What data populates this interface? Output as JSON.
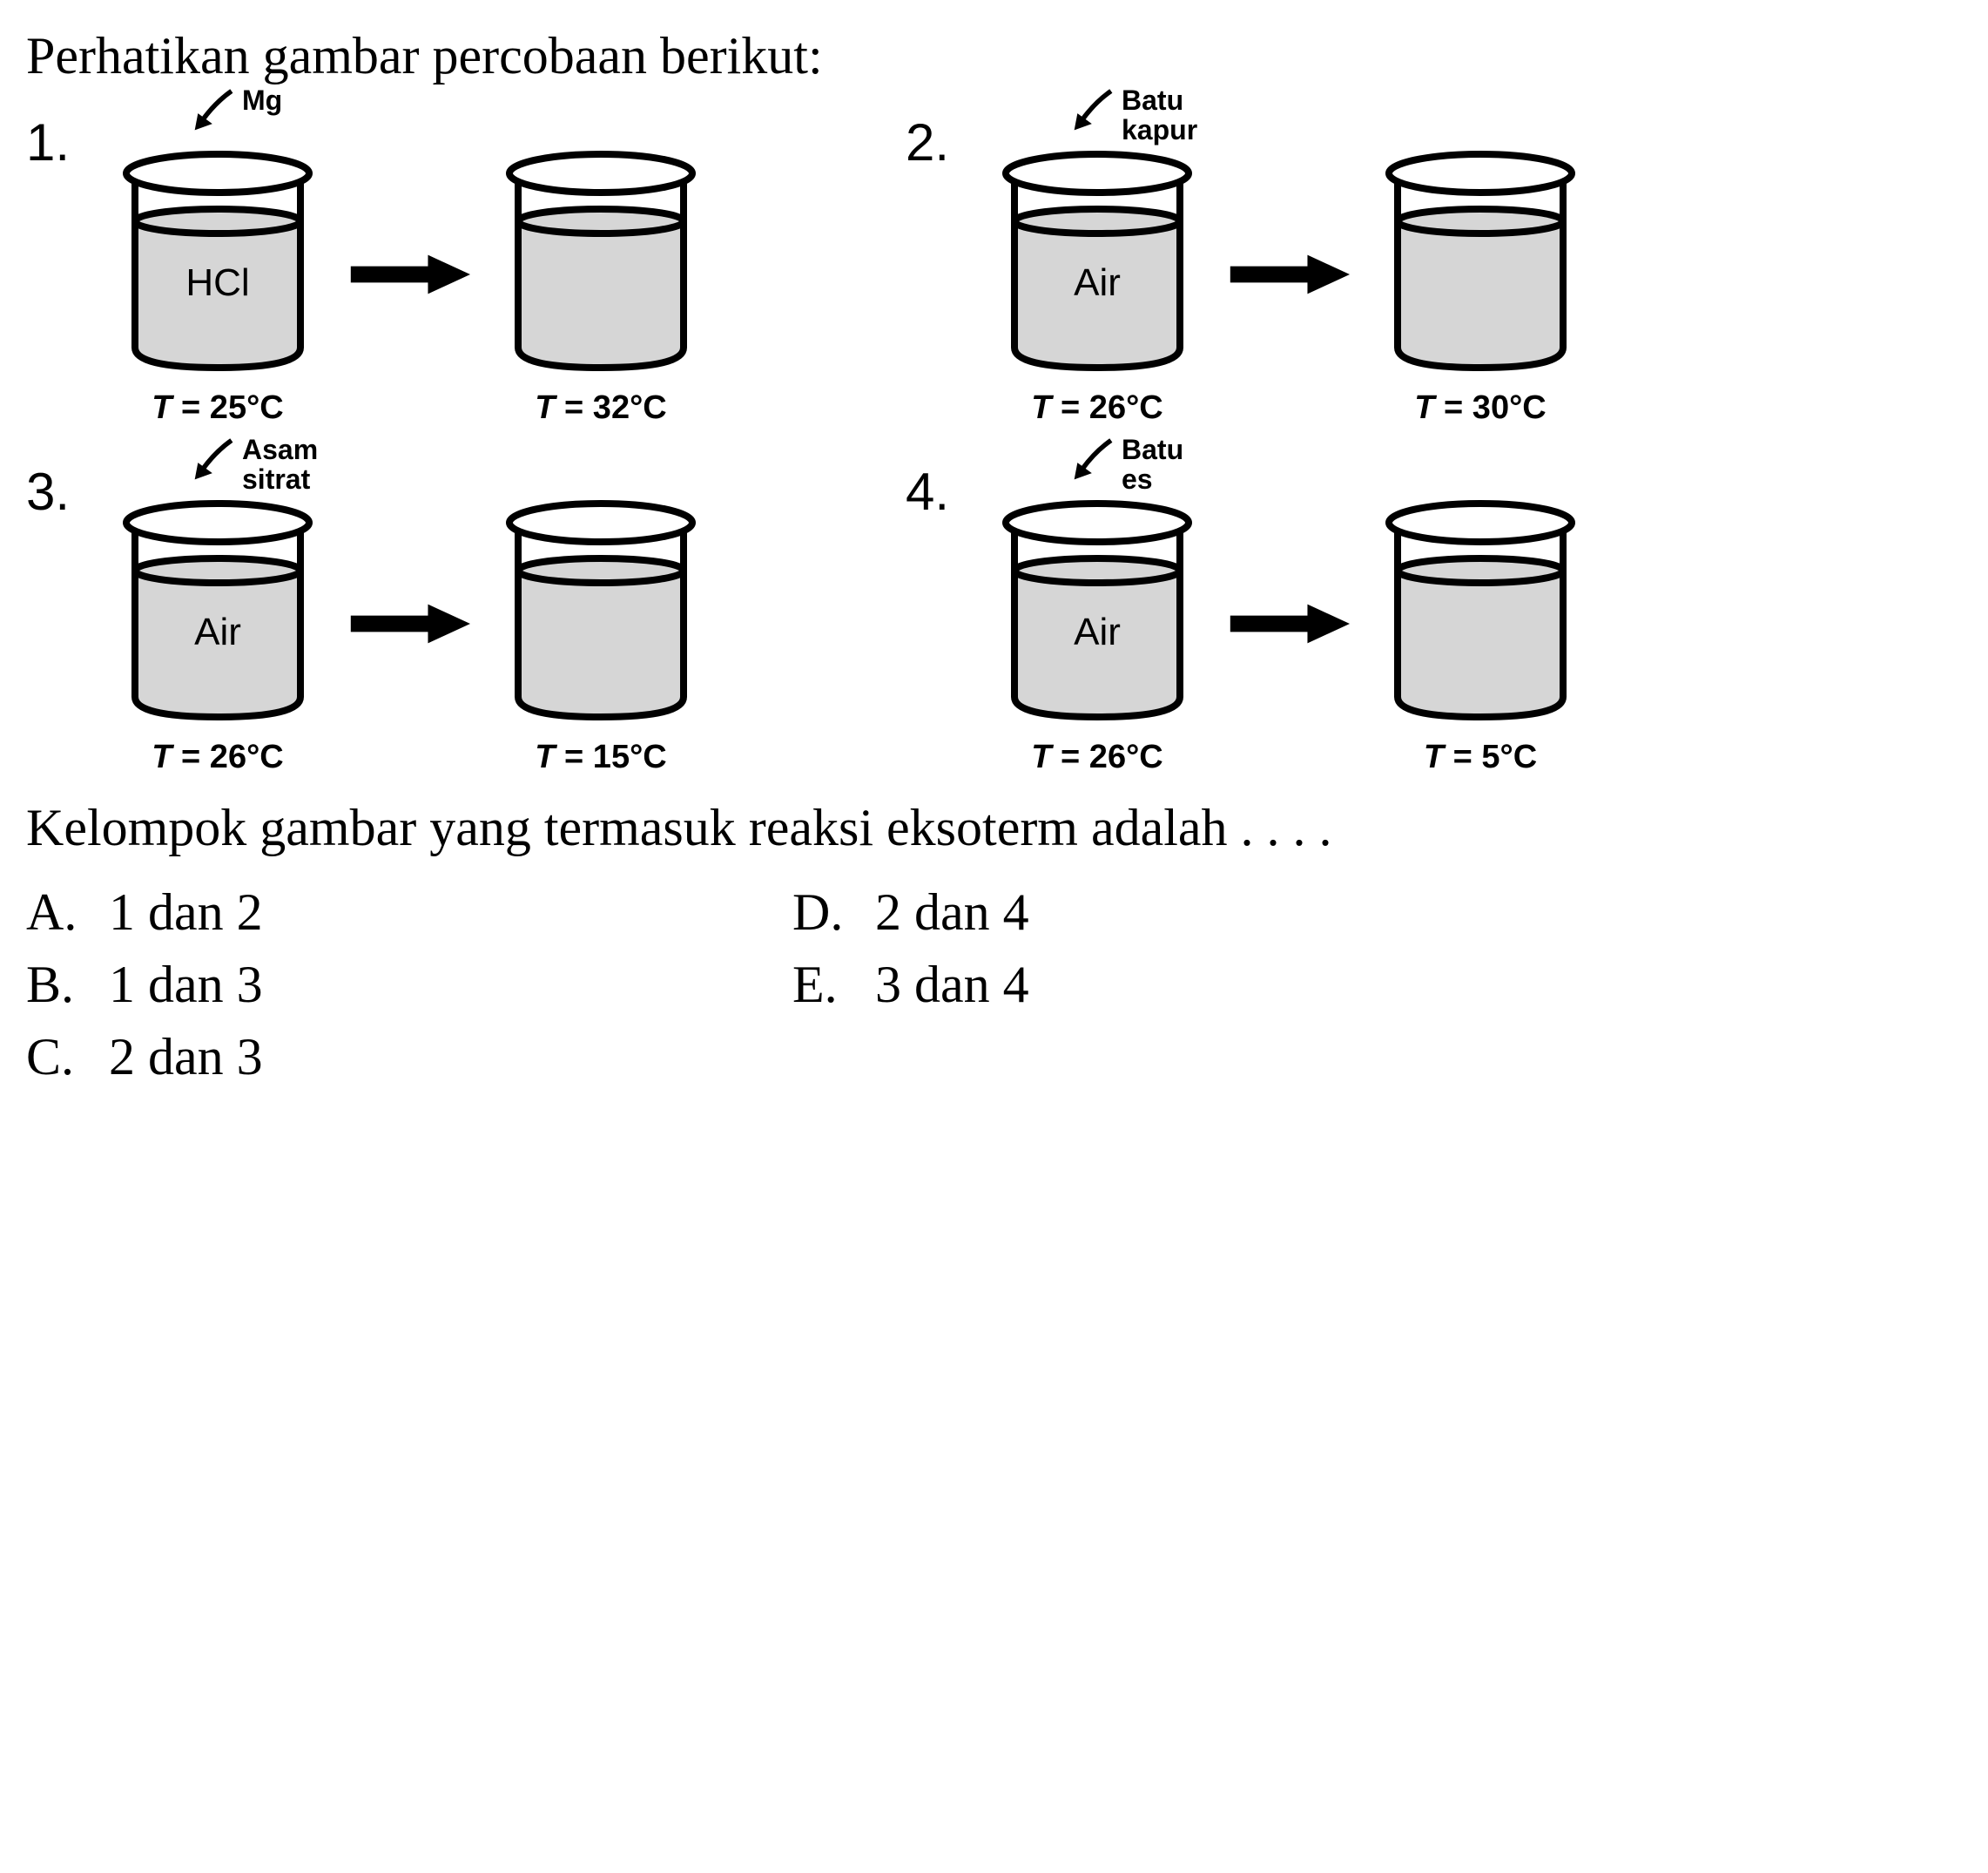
{
  "title": "Perhatikan gambar percobaan berikut:",
  "colors": {
    "liquid_fill": "#d6d6d6",
    "stroke": "#000000",
    "bg": "#ffffff",
    "text": "#000000"
  },
  "beaker_style": {
    "stroke_width": 8,
    "liquid_ellipse_ry": 12,
    "top_ellipse_ry": 18
  },
  "experiments": [
    {
      "number": "1.",
      "additive": "Mg",
      "additive_lines": [
        "Mg"
      ],
      "liquid_label": "HCl",
      "temp_before": "T = 25°C",
      "temp_after": "T = 32°C"
    },
    {
      "number": "2.",
      "additive": "Batu kapur",
      "additive_lines": [
        "Batu",
        "kapur"
      ],
      "liquid_label": "Air",
      "temp_before": "T = 26°C",
      "temp_after": "T = 30°C"
    },
    {
      "number": "3.",
      "additive": "Asam sitrat",
      "additive_lines": [
        "Asam",
        "sitrat"
      ],
      "liquid_label": "Air",
      "temp_before": "T = 26°C",
      "temp_after": "T = 15°C"
    },
    {
      "number": "4.",
      "additive": "Batu es",
      "additive_lines": [
        "Batu",
        "es"
      ],
      "liquid_label": "Air",
      "temp_before": "T = 26°C",
      "temp_after": "T = 5°C"
    }
  ],
  "question": "Kelompok gambar yang termasuk reaksi eksoterm adalah . . . .",
  "options": [
    {
      "letter": "A.",
      "text": "1 dan 2"
    },
    {
      "letter": "B.",
      "text": "1 dan 3"
    },
    {
      "letter": "C.",
      "text": "2 dan 3"
    },
    {
      "letter": "D.",
      "text": "2 dan 4"
    },
    {
      "letter": "E.",
      "text": "3 dan 4"
    }
  ],
  "option_layout_order": [
    0,
    3,
    1,
    4,
    2
  ]
}
